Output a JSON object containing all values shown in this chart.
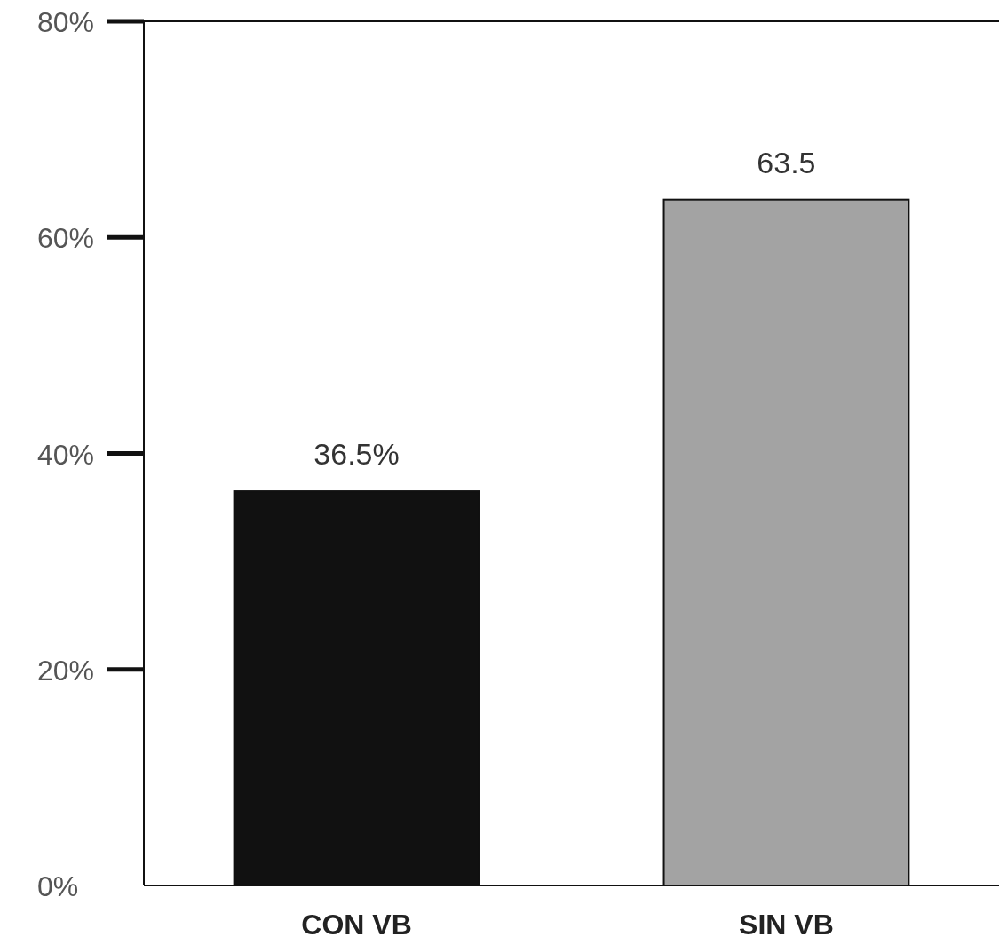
{
  "chart_data": {
    "type": "bar",
    "categories": [
      "CON VB",
      "SIN VB"
    ],
    "values": [
      36.5,
      63.5
    ],
    "colors": [
      "#111111",
      "#a3a3a3"
    ],
    "value_labels": [
      "36.5%",
      "63.5"
    ],
    "ylim": [
      0,
      80
    ],
    "yticks": [
      {
        "value": 0,
        "label": "0%"
      },
      {
        "value": 20,
        "label": "20%"
      },
      {
        "value": 40,
        "label": "40%"
      },
      {
        "value": 60,
        "label": "60%"
      },
      {
        "value": 80,
        "label": "80%"
      }
    ],
    "grid": false
  }
}
